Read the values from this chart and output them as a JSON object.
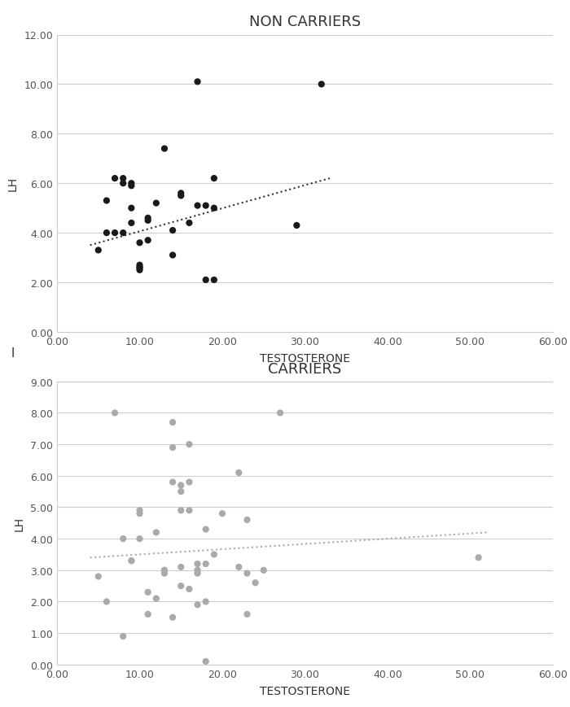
{
  "non_carriers": {
    "title": "NON CARRIERS",
    "xlabel": "TESTOSTERONE",
    "ylabel": "LH",
    "xlim": [
      0,
      60
    ],
    "ylim": [
      0,
      12
    ],
    "xticks": [
      0,
      10,
      20,
      30,
      40,
      50,
      60
    ],
    "yticks": [
      0,
      2,
      4,
      6,
      8,
      10,
      12
    ],
    "xtick_labels": [
      "0.00",
      "10.00",
      "20.00",
      "30.00",
      "40.00",
      "50.00",
      "60.00"
    ],
    "ytick_labels": [
      "0.00",
      "2.00",
      "4.00",
      "6.00",
      "8.00",
      "10.00",
      "12.00"
    ],
    "x": [
      5,
      6,
      6,
      7,
      7,
      8,
      8,
      8,
      9,
      9,
      9,
      9,
      10,
      10,
      10,
      10,
      10,
      11,
      11,
      11,
      12,
      13,
      14,
      14,
      15,
      15,
      16,
      17,
      17,
      18,
      18,
      19,
      19,
      19,
      29,
      32
    ],
    "y": [
      3.3,
      4.0,
      5.3,
      4.0,
      6.2,
      6.0,
      6.2,
      4.0,
      5.0,
      6.0,
      5.9,
      4.4,
      2.7,
      2.6,
      2.6,
      3.6,
      2.5,
      3.7,
      4.5,
      4.6,
      5.2,
      7.4,
      4.1,
      3.1,
      5.5,
      5.6,
      4.4,
      5.1,
      10.1,
      5.1,
      2.1,
      6.2,
      5.0,
      2.1,
      4.3,
      10.0
    ],
    "color": "#1a1a1a",
    "trendline_color": "#333333",
    "trendline_x_start": 4,
    "trendline_x_end": 33,
    "trendline_y_start": 3.5,
    "trendline_y_end": 6.2
  },
  "carriers": {
    "title": "CARRIERS",
    "xlabel": "TESTOSTERONE",
    "ylabel": "LH",
    "xlim": [
      0,
      60
    ],
    "ylim": [
      0,
      9
    ],
    "xticks": [
      0,
      10,
      20,
      30,
      40,
      50,
      60
    ],
    "yticks": [
      0,
      1,
      2,
      3,
      4,
      5,
      6,
      7,
      8,
      9
    ],
    "xtick_labels": [
      "0.00",
      "10.00",
      "20.00",
      "30.00",
      "40.00",
      "50.00",
      "60.00"
    ],
    "ytick_labels": [
      "0.00",
      "1.00",
      "2.00",
      "3.00",
      "4.00",
      "5.00",
      "6.00",
      "7.00",
      "8.00",
      "9.00"
    ],
    "x": [
      5,
      6,
      7,
      8,
      8,
      9,
      9,
      10,
      10,
      10,
      11,
      11,
      12,
      12,
      13,
      13,
      13,
      14,
      14,
      14,
      14,
      15,
      15,
      15,
      15,
      15,
      16,
      16,
      16,
      16,
      17,
      17,
      17,
      17,
      18,
      18,
      18,
      18,
      19,
      20,
      22,
      22,
      23,
      23,
      23,
      24,
      25,
      27,
      51
    ],
    "y": [
      2.8,
      2.0,
      8.0,
      0.9,
      4.0,
      3.3,
      3.3,
      4.0,
      4.8,
      4.9,
      2.3,
      1.6,
      4.2,
      2.1,
      2.9,
      3.0,
      3.0,
      7.7,
      6.9,
      5.8,
      1.5,
      5.5,
      5.7,
      4.9,
      3.1,
      2.5,
      7.0,
      5.8,
      4.9,
      2.4,
      3.2,
      3.0,
      2.9,
      1.9,
      4.3,
      3.2,
      2.0,
      0.1,
      3.5,
      4.8,
      6.1,
      3.1,
      4.6,
      2.9,
      1.6,
      2.6,
      3.0,
      8.0,
      3.4
    ],
    "color": "#aaaaaa",
    "trendline_color": "#aaaaaa",
    "trendline_x_start": 4,
    "trendline_x_end": 52,
    "trendline_y_start": 3.4,
    "trendline_y_end": 4.2
  },
  "background_color": "#ffffff",
  "axis_color": "#cccccc",
  "title_fontsize": 13,
  "label_fontsize": 10,
  "tick_fontsize": 9,
  "gap_label": "l"
}
